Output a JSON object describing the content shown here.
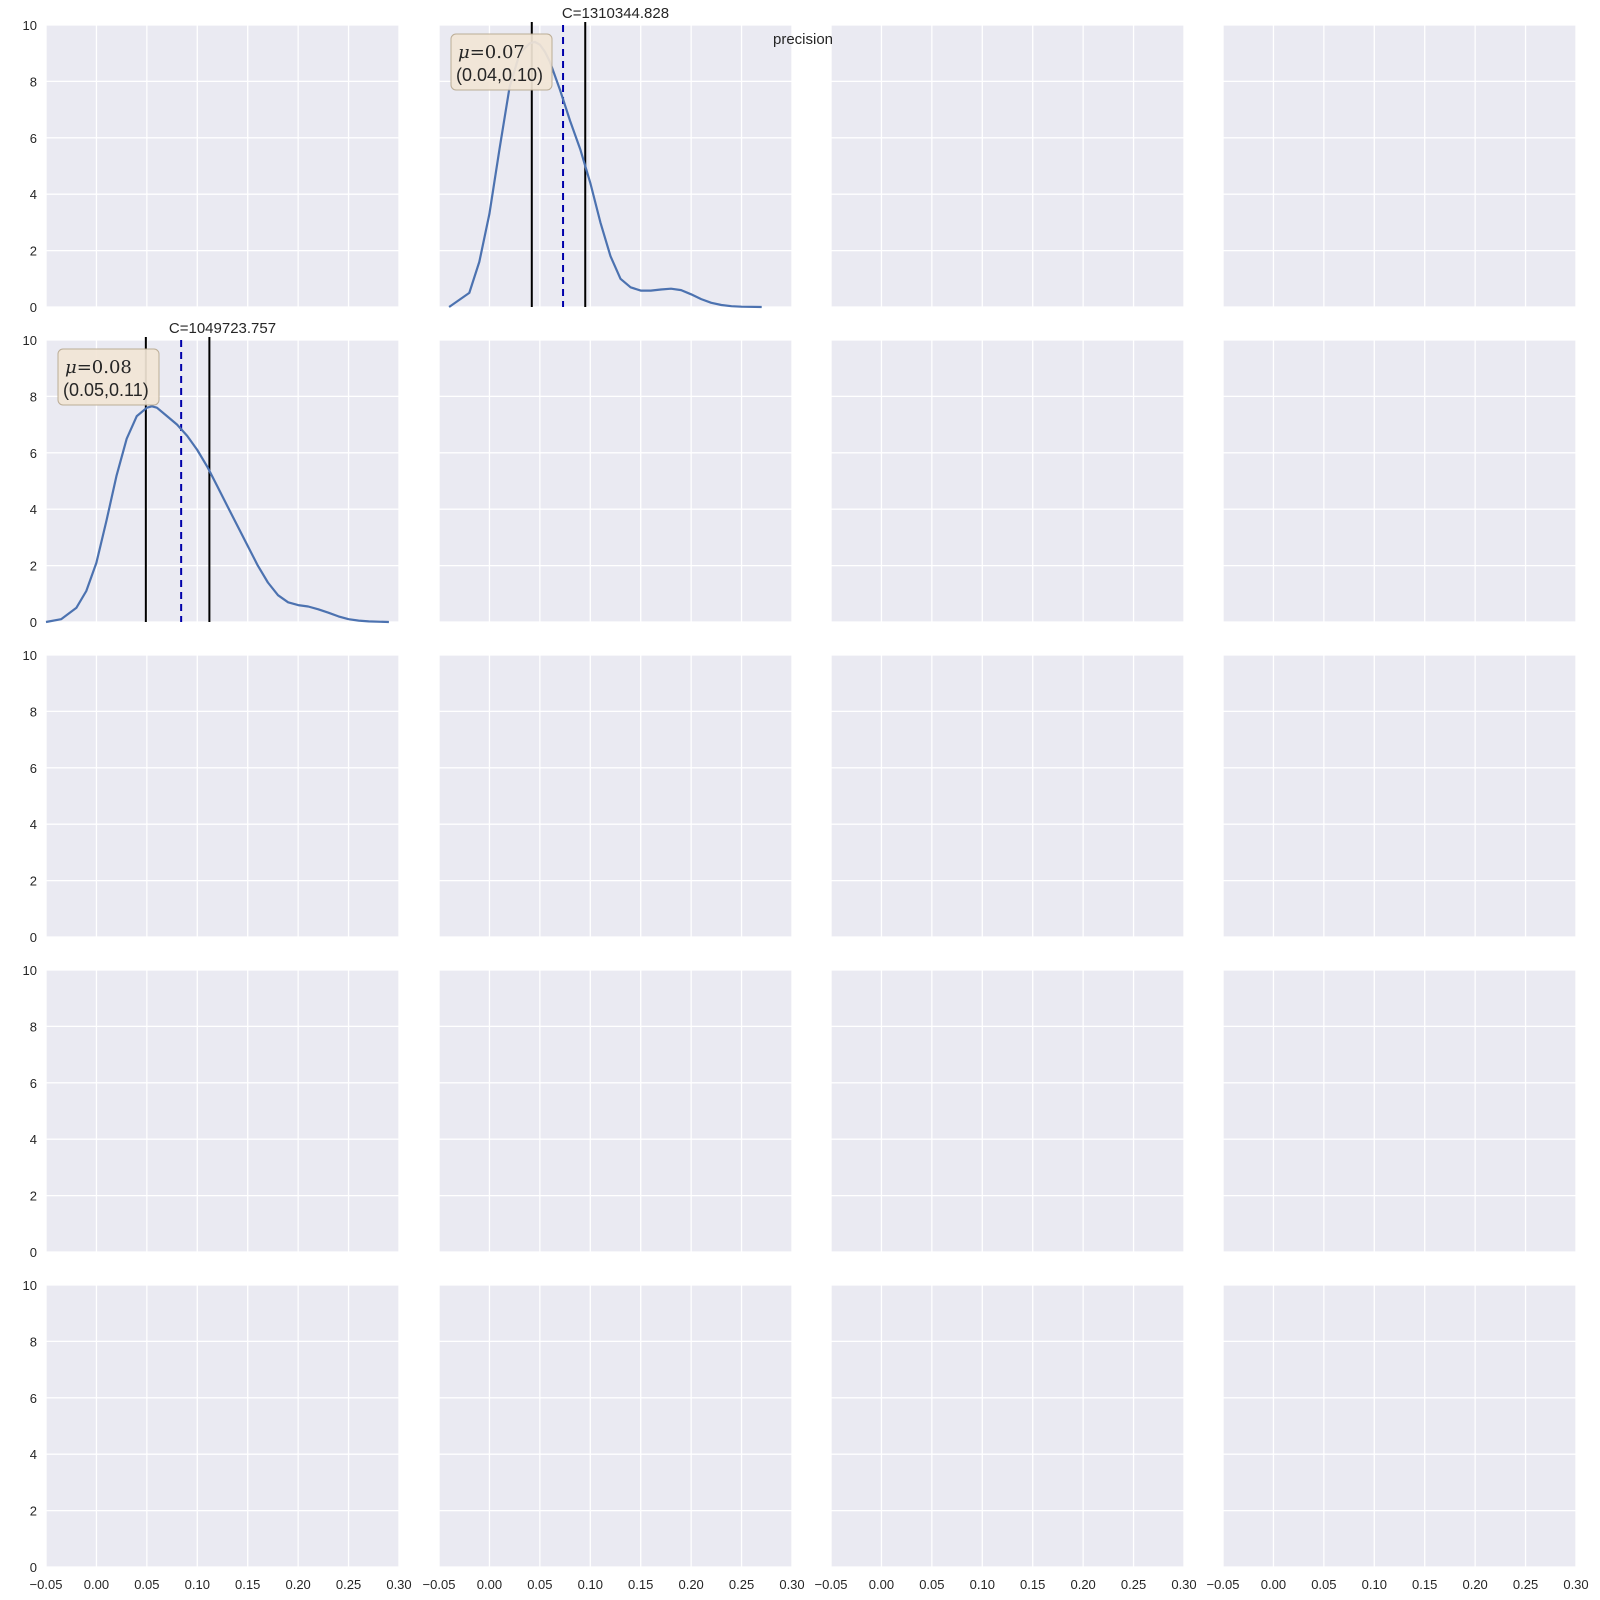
{
  "figure_label": "precision",
  "chart_data": {
    "type": "line",
    "grid": {
      "rows": 5,
      "cols": 4
    },
    "xlim": [
      -0.05,
      0.3
    ],
    "ylim": [
      0,
      10
    ],
    "xticks": [
      -0.05,
      0.0,
      0.05,
      0.1,
      0.15,
      0.2,
      0.25,
      0.3
    ],
    "xtick_labels": [
      "−0.05",
      "0.00",
      "0.05",
      "0.10",
      "0.15",
      "0.20",
      "0.25",
      "0.30"
    ],
    "yticks": [
      0,
      2,
      4,
      6,
      8,
      10
    ],
    "ytick_labels": [
      "0",
      "2",
      "4",
      "6",
      "8",
      "10"
    ],
    "line_color": "#4c72b0",
    "background_color": "#eaeaf2",
    "ci_line_color": "#000000",
    "mean_line_color": "#0000aa",
    "box_fill": "#f2e6d6",
    "panels": [
      {
        "row": 0,
        "col": 1,
        "title": "C=1310344.828",
        "mu_label": "μ",
        "mu_text": "=0.07",
        "ci_text": "(0.04,0.10)",
        "mean": 0.073,
        "ci": [
          0.042,
          0.095
        ],
        "x": [
          -0.04,
          -0.02,
          -0.01,
          0.0,
          0.01,
          0.02,
          0.03,
          0.04,
          0.045,
          0.05,
          0.055,
          0.06,
          0.07,
          0.08,
          0.09,
          0.1,
          0.11,
          0.12,
          0.13,
          0.14,
          0.15,
          0.16,
          0.17,
          0.18,
          0.19,
          0.2,
          0.21,
          0.22,
          0.23,
          0.24,
          0.25,
          0.27
        ],
        "y": [
          0.0,
          0.5,
          1.6,
          3.3,
          5.6,
          7.8,
          9.0,
          9.35,
          9.4,
          9.3,
          9.05,
          8.7,
          7.7,
          6.6,
          5.6,
          4.4,
          3.0,
          1.8,
          1.0,
          0.7,
          0.58,
          0.58,
          0.62,
          0.65,
          0.6,
          0.45,
          0.28,
          0.15,
          0.07,
          0.03,
          0.01,
          0.0
        ]
      },
      {
        "row": 1,
        "col": 0,
        "title": "C=1049723.757",
        "mu_label": "μ",
        "mu_text": "=0.08",
        "ci_text": "(0.05,0.11)",
        "mean": 0.084,
        "ci": [
          0.049,
          0.112
        ],
        "x": [
          -0.05,
          -0.035,
          -0.02,
          -0.01,
          0.0,
          0.01,
          0.02,
          0.03,
          0.04,
          0.05,
          0.055,
          0.06,
          0.07,
          0.08,
          0.09,
          0.1,
          0.11,
          0.12,
          0.13,
          0.14,
          0.15,
          0.16,
          0.17,
          0.18,
          0.19,
          0.2,
          0.21,
          0.22,
          0.23,
          0.24,
          0.25,
          0.26,
          0.27,
          0.29
        ],
        "y": [
          0.0,
          0.1,
          0.5,
          1.1,
          2.1,
          3.6,
          5.2,
          6.5,
          7.3,
          7.6,
          7.65,
          7.6,
          7.3,
          7.0,
          6.6,
          6.1,
          5.5,
          4.8,
          4.1,
          3.4,
          2.7,
          2.0,
          1.4,
          0.95,
          0.7,
          0.6,
          0.55,
          0.45,
          0.33,
          0.2,
          0.1,
          0.05,
          0.02,
          0.0
        ]
      }
    ]
  }
}
